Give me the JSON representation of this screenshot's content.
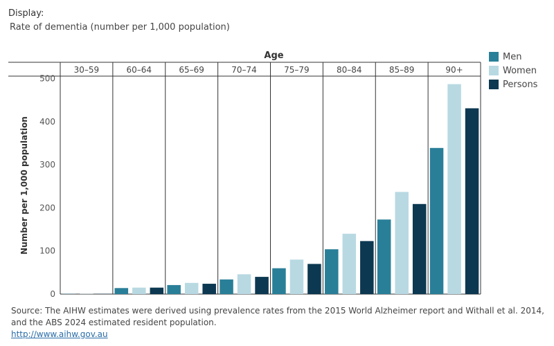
{
  "display": {
    "label": "Display:",
    "value": "Rate of dementia (number per 1,000 population)"
  },
  "chart_data": {
    "type": "bar",
    "xlabel": "Age",
    "ylabel": "Number per 1,000 population",
    "ylim": [
      0,
      510
    ],
    "yticks": [
      0,
      100,
      200,
      300,
      400,
      500
    ],
    "categories": [
      "30–59",
      "60–64",
      "65–69",
      "70–74",
      "75–79",
      "80–84",
      "85–89",
      "90+"
    ],
    "series": [
      {
        "name": "Men",
        "color": "#2a7f98",
        "values": [
          0.5,
          14,
          21,
          34,
          60,
          104,
          173,
          339
        ]
      },
      {
        "name": "Women",
        "color": "#b8d9e2",
        "values": [
          0.5,
          15,
          26,
          46,
          80,
          140,
          237,
          487
        ]
      },
      {
        "name": "Persons",
        "color": "#0c3851",
        "values": [
          0.5,
          15,
          24,
          40,
          70,
          123,
          209,
          431
        ]
      }
    ],
    "legend_position": "top-right",
    "grid": false
  },
  "source": {
    "text": "Source: The AIHW estimates were derived using prevalence rates from the 2015 World Alzheimer report and Withall et al. 2014, and the ABS 2024 estimated resident population.",
    "link": "http://www.aihw.gov.au"
  }
}
